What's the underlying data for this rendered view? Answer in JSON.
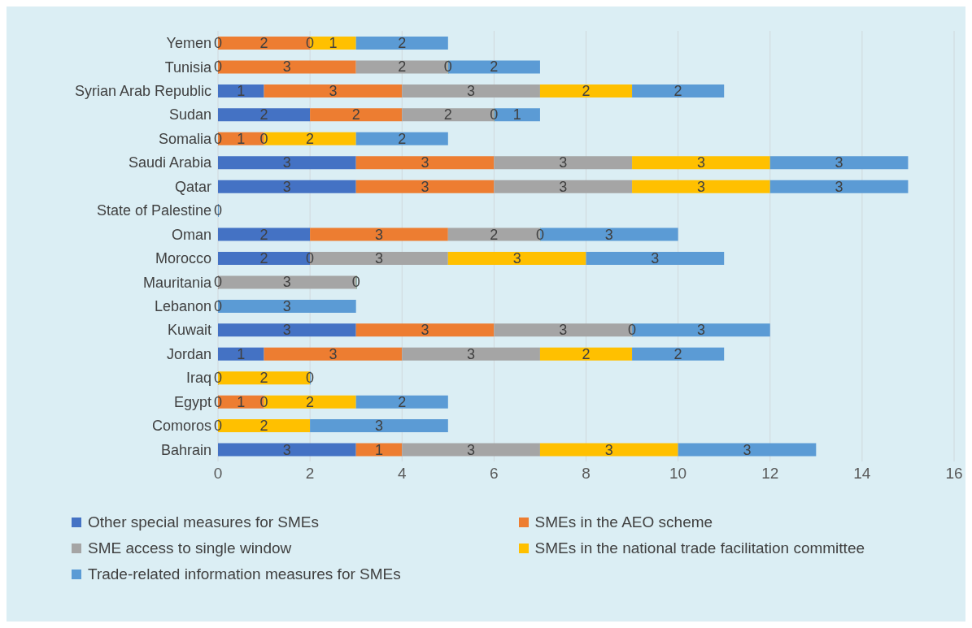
{
  "chart_data": {
    "type": "bar",
    "orientation": "horizontal",
    "stacked": true,
    "grid": "x",
    "legend": "bottom",
    "categories": [
      "Yemen",
      "Tunisia",
      "Syrian Arab Republic",
      "Sudan",
      "Somalia",
      "Saudi Arabia",
      "Qatar",
      "State of Palestine",
      "Oman",
      "Morocco",
      "Mauritania",
      "Lebanon",
      "Kuwait",
      "Jordan",
      "Iraq",
      "Egypt",
      "Comoros",
      "Bahrain"
    ],
    "xlim": [
      0,
      16
    ],
    "xticks": [
      0,
      2,
      4,
      6,
      8,
      10,
      12,
      14,
      16
    ],
    "series": [
      {
        "name": "Other special measures for SMEs",
        "color": "#4472c4",
        "values": [
          0,
          0,
          1,
          2,
          0,
          3,
          3,
          0,
          2,
          2,
          0,
          0,
          3,
          1,
          0,
          0,
          0,
          3
        ],
        "value_labels": [
          "0",
          "0",
          "1",
          "2",
          "0",
          "3",
          "3",
          "0",
          "2",
          "2",
          "0",
          "0",
          "3",
          "1",
          "0",
          "0",
          "0",
          "3"
        ]
      },
      {
        "name": "SMEs in the AEO scheme",
        "color": "#ed7d31",
        "values": [
          2,
          3,
          3,
          2,
          1,
          3,
          3,
          0,
          3,
          0,
          0,
          0,
          3,
          3,
          0,
          1,
          0,
          1
        ],
        "value_labels": [
          "2",
          "3",
          "3",
          "2",
          "1",
          "3",
          "3",
          null,
          "3",
          "0",
          null,
          null,
          "3",
          "3",
          null,
          "1",
          null,
          "1"
        ]
      },
      {
        "name": "SME access to single window",
        "color": "#a5a5a5",
        "values": [
          0,
          2,
          3,
          2,
          0,
          3,
          3,
          0,
          2,
          3,
          3,
          0,
          3,
          3,
          0,
          0,
          0,
          3
        ],
        "value_labels": [
          "0",
          "2",
          "3",
          "2",
          "0",
          "3",
          "3",
          null,
          "2",
          "3",
          "3",
          null,
          "3",
          "3",
          null,
          "0",
          null,
          "3"
        ]
      },
      {
        "name": "SMEs in the national trade facilitation committee",
        "color": "#ffc000",
        "values": [
          1,
          0,
          2,
          0,
          2,
          3,
          3,
          0,
          0,
          3,
          0,
          0,
          0,
          2,
          2,
          2,
          2,
          3
        ],
        "value_labels": [
          "1",
          "0",
          "2",
          "0",
          "2",
          "3",
          "3",
          null,
          "0",
          "3",
          "0",
          null,
          "0",
          "2",
          "2",
          "2",
          "2",
          "3"
        ]
      },
      {
        "name": "Trade-related information measures for SMEs",
        "color": "#5b9bd5",
        "values": [
          2,
          2,
          2,
          1,
          2,
          3,
          3,
          0,
          3,
          3,
          0,
          3,
          3,
          2,
          0,
          2,
          3,
          3
        ],
        "value_labels": [
          "2",
          "2",
          "2",
          "1",
          "2",
          "3",
          "3",
          null,
          "3",
          "3",
          null,
          "3",
          "3",
          "2",
          "0",
          "2",
          "3",
          "3"
        ]
      }
    ]
  }
}
